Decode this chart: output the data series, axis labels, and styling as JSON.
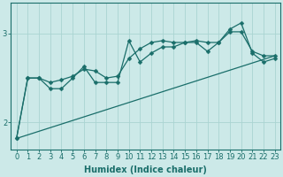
{
  "xlabel": "Humidex (Indice chaleur)",
  "ylabel": "",
  "xlim": [
    -0.5,
    23.5
  ],
  "ylim": [
    1.7,
    3.35
  ],
  "background_color": "#cce9e8",
  "grid_color": "#aad4d2",
  "line_color": "#1a6e6a",
  "x_ticks": [
    0,
    1,
    2,
    3,
    4,
    5,
    6,
    7,
    8,
    9,
    10,
    11,
    12,
    13,
    14,
    15,
    16,
    17,
    18,
    19,
    20,
    21,
    22,
    23
  ],
  "y_ticks": [
    2,
    3
  ],
  "series1": [
    1.82,
    2.5,
    2.5,
    2.38,
    2.38,
    2.5,
    2.63,
    2.45,
    2.45,
    2.45,
    2.92,
    2.68,
    2.78,
    2.85,
    2.85,
    2.9,
    2.9,
    2.8,
    2.9,
    3.05,
    3.12,
    2.78,
    2.68,
    2.72
  ],
  "series2": [
    1.82,
    2.5,
    2.5,
    2.45,
    2.48,
    2.52,
    2.6,
    2.58,
    2.5,
    2.52,
    2.72,
    2.83,
    2.9,
    2.92,
    2.9,
    2.9,
    2.92,
    2.9,
    2.9,
    3.02,
    3.02,
    2.8,
    2.75,
    2.75
  ],
  "trend_x": [
    0,
    23
  ],
  "trend_y": [
    1.82,
    2.75
  ],
  "marker": "D",
  "markersize": 2.5,
  "linewidth": 0.9,
  "label_fontsize": 7,
  "tick_fontsize": 6
}
